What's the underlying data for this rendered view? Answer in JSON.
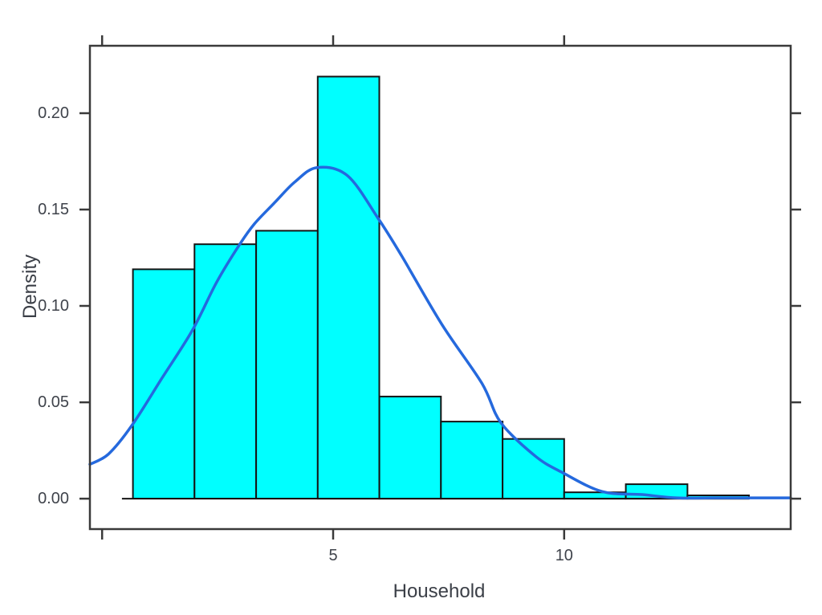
{
  "chart_data": {
    "type": "histogram",
    "title": "",
    "xlabel": "Household",
    "ylabel": "Density",
    "xlim": [
      -0.264,
      14.902
    ],
    "ylim": [
      -0.0158,
      0.235
    ],
    "grid": false,
    "legend": "none",
    "x_ticks": {
      "values": [
        0,
        5,
        10
      ],
      "labels": [
        "",
        "5",
        "10"
      ]
    },
    "y_ticks": {
      "values": [
        0.0,
        0.05,
        0.1,
        0.15,
        0.2
      ],
      "labels": [
        "0.00",
        "0.05",
        "0.10",
        "0.15",
        "0.20"
      ]
    },
    "bins": {
      "edges": [
        0.667,
        2.0,
        3.333,
        4.667,
        6.0,
        7.333,
        8.667,
        10.0,
        11.333,
        12.667,
        14.0
      ],
      "densities": [
        0.119,
        0.132,
        0.139,
        0.219,
        0.053,
        0.04,
        0.031,
        0.0033,
        0.0075,
        0.0017
      ]
    },
    "density_curve": {
      "x": [
        -0.264,
        0.14,
        0.64,
        1.3,
        1.96,
        2.48,
        2.99,
        3.3,
        3.73,
        4.17,
        4.65,
        5.31,
        5.97,
        6.48,
        7.35,
        8.22,
        8.63,
        9.38,
        9.95,
        10.82,
        11.69,
        12.44,
        13.43,
        14.9
      ],
      "y": [
        0.0178,
        0.0232,
        0.0378,
        0.0627,
        0.0876,
        0.1124,
        0.1324,
        0.1427,
        0.1535,
        0.1643,
        0.1718,
        0.1676,
        0.1456,
        0.1261,
        0.0905,
        0.0598,
        0.0394,
        0.022,
        0.0137,
        0.0037,
        0.0021,
        0.0004,
        0.0004,
        0.0004
      ]
    },
    "baseline": {
      "x_start": 0.43,
      "x_end": 14.0,
      "y": 0
    },
    "colors": {
      "bar_fill": "#00ffff",
      "bar_border": "#141414",
      "curve": "#2569dd",
      "axis": "#3a3a3a",
      "text": "#3f434b"
    }
  }
}
